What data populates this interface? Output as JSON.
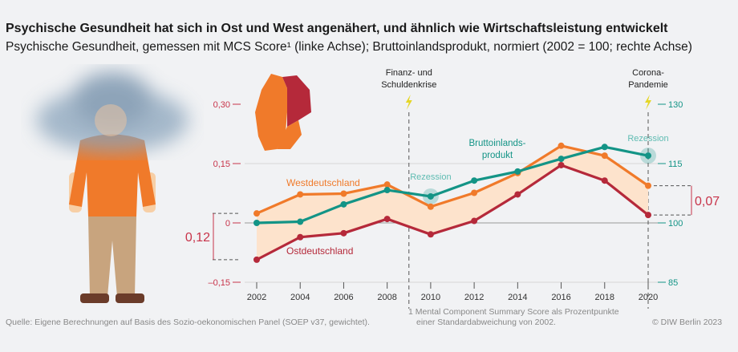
{
  "title": "Psychische Gesundheit hat sich in Ost und West angenähert, und ähnlich wie Wirtschaftsleistung entwickelt",
  "subtitle": "Psychische Gesundheit, gemessen mit MCS Score¹ (linke Achse); Bruttoinlandsprodukt, normiert (2002 = 100; rechte Achse)",
  "source": "Quelle: Eigene Berechnungen auf Basis des Sozio-oekonomischen Panel (SOEP v37, gewichtet).",
  "footnote_line1": "1  Mental Component Summary Score als Prozentpunkte",
  "footnote_line2": "einer Standardabweichung von 2002.",
  "copyright": "© DIW Berlin 2023",
  "colors": {
    "west": "#f07a2a",
    "east": "#b5293a",
    "gdp": "#139486",
    "band": "#fde3cc",
    "left_axis": "#c8344a",
    "right_axis": "#139486"
  },
  "chart_data": {
    "type": "line",
    "x": [
      2002,
      2004,
      2006,
      2008,
      2010,
      2012,
      2014,
      2016,
      2018,
      2020
    ],
    "left_axis": {
      "ylim": [
        -0.15,
        0.3
      ],
      "ticks": [
        "0,30",
        "0,15",
        "0",
        "–0,15"
      ]
    },
    "right_axis": {
      "ylim": [
        85,
        130
      ],
      "ticks": [
        "130",
        "115",
        "100",
        "85"
      ]
    },
    "xticks": [
      "2002",
      "2004",
      "2006",
      "2008",
      "2010",
      "2012",
      "2014",
      "2016",
      "2018",
      "2020"
    ],
    "series": [
      {
        "name": "Westdeutschland",
        "axis": "left",
        "values": [
          0.024,
          0.072,
          0.074,
          0.097,
          0.041,
          0.076,
          0.126,
          0.195,
          0.17,
          0.094
        ]
      },
      {
        "name": "Ostdeutschland",
        "axis": "left",
        "values": [
          -0.093,
          -0.036,
          -0.026,
          0.01,
          -0.029,
          0.005,
          0.072,
          0.146,
          0.107,
          0.02
        ]
      },
      {
        "name": "Bruttoinlands-produkt",
        "name_lines": [
          "Bruttoinlands-",
          "produkt"
        ],
        "axis": "right",
        "values": [
          100.0,
          100.3,
          104.7,
          108.3,
          106.7,
          110.7,
          113.0,
          116.2,
          119.2,
          117.0
        ]
      }
    ],
    "annotations": {
      "crisis1": [
        "Finanz- und",
        "Schuldenkrise"
      ],
      "crisis2": [
        "Corona-",
        "Pandemie"
      ],
      "recession": "Rezession",
      "gap_2002": "0,12",
      "gap_2020": "0,07"
    }
  }
}
